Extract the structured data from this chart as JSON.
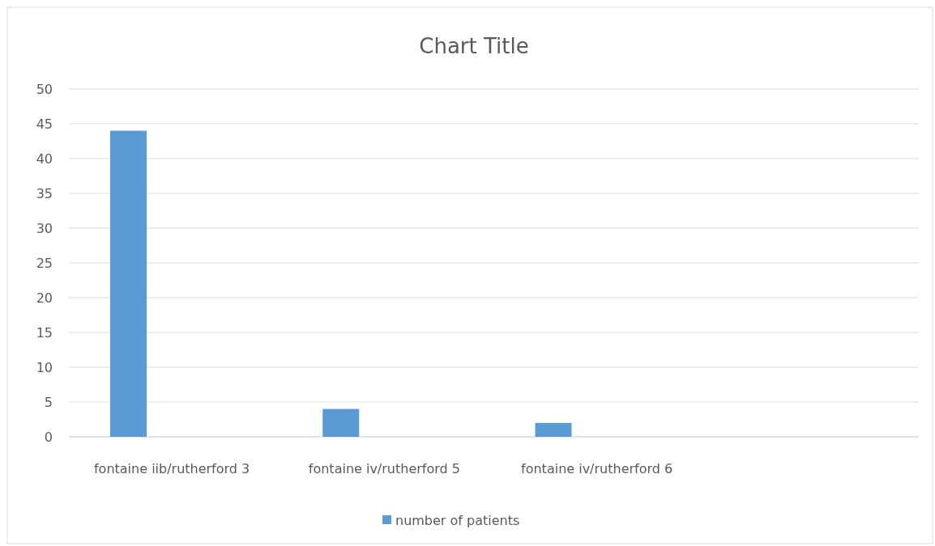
{
  "chart_data": {
    "type": "bar",
    "title": "Chart Title",
    "categories": [
      "fontaine iib/rutherford 3",
      "fontaine iv/rutherford 5",
      "fontaine iv/rutherford 6",
      null
    ],
    "series": [
      {
        "name": "number of patients",
        "color": "#5b9bd5",
        "values": [
          44,
          4,
          2,
          null
        ]
      }
    ],
    "ylim": [
      0,
      50
    ],
    "yticks": [
      0,
      5,
      10,
      15,
      20,
      25,
      30,
      35,
      40,
      45,
      50
    ],
    "grid": "y",
    "legend": "bottom"
  }
}
